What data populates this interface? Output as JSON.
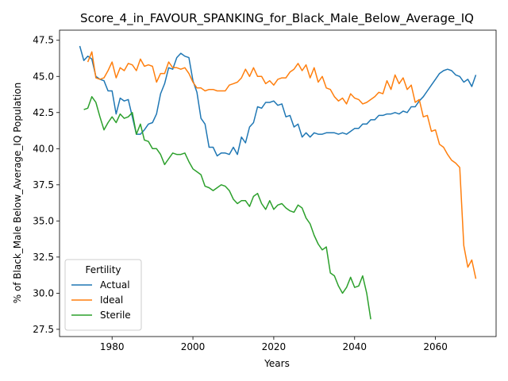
{
  "chart_data": {
    "type": "line",
    "title": "Score_4_in_FAVOUR_SPANKING_for_Black_Male_Below_Average_IQ",
    "xlabel": "Years",
    "ylabel": "% of Black_Male Below_Average_IQ Population",
    "xlim": [
      1967,
      2075
    ],
    "ylim": [
      27.0,
      48.2
    ],
    "xticks": [
      1980,
      2000,
      2020,
      2040,
      2060
    ],
    "yticks": [
      27.5,
      30.0,
      32.5,
      35.0,
      37.5,
      40.0,
      42.5,
      45.0,
      47.5
    ],
    "ytick_labels": [
      "27.5",
      "30.0",
      "32.5",
      "35.0",
      "37.5",
      "40.0",
      "42.5",
      "45.0",
      "47.5"
    ],
    "grid": false,
    "legend": {
      "title": "Fertility",
      "position": "bottom-left"
    },
    "series": [
      {
        "name": "Actual",
        "color": "#1f77b4",
        "x": [
          1972,
          1973,
          1974,
          1975,
          1976,
          1977,
          1978,
          1979,
          1980,
          1981,
          1982,
          1983,
          1984,
          1985,
          1986,
          1987,
          1988,
          1989,
          1990,
          1991,
          1992,
          1993,
          1994,
          1995,
          1996,
          1997,
          1998,
          1999,
          2000,
          2001,
          2002,
          2003,
          2004,
          2005,
          2006,
          2007,
          2008,
          2009,
          2010,
          2011,
          2012,
          2013,
          2014,
          2015,
          2016,
          2017,
          2018,
          2019,
          2020,
          2021,
          2022,
          2023,
          2024,
          2025,
          2026,
          2027,
          2028,
          2029,
          2030,
          2031,
          2032,
          2033,
          2034,
          2035,
          2036,
          2037,
          2038,
          2039,
          2040,
          2041,
          2042,
          2043,
          2044,
          2045,
          2046,
          2047,
          2048,
          2049,
          2050,
          2051,
          2052,
          2053,
          2054,
          2055,
          2056,
          2057,
          2058,
          2059,
          2060,
          2061,
          2062,
          2063,
          2064,
          2065,
          2066,
          2067,
          2068,
          2069,
          2070
        ],
        "values": [
          47.1,
          46.1,
          46.4,
          46.2,
          45.0,
          44.8,
          44.7,
          44.0,
          44.0,
          42.4,
          43.5,
          43.3,
          43.4,
          42.2,
          41.0,
          41.0,
          41.3,
          41.7,
          41.8,
          42.4,
          43.8,
          44.5,
          45.6,
          45.5,
          46.3,
          46.6,
          46.4,
          46.3,
          44.7,
          43.9,
          42.1,
          41.7,
          40.1,
          40.1,
          39.5,
          39.7,
          39.7,
          39.6,
          40.1,
          39.6,
          40.8,
          40.4,
          41.5,
          41.8,
          42.9,
          42.8,
          43.2,
          43.2,
          43.3,
          43.0,
          43.1,
          42.2,
          42.3,
          41.5,
          41.7,
          40.8,
          41.1,
          40.8,
          41.1,
          41.0,
          41.0,
          41.1,
          41.1,
          41.1,
          41.0,
          41.1,
          41.0,
          41.2,
          41.4,
          41.4,
          41.7,
          41.7,
          42.0,
          42.0,
          42.3,
          42.3,
          42.4,
          42.4,
          42.5,
          42.4,
          42.6,
          42.5,
          42.9,
          42.9,
          43.3,
          43.6,
          44.0,
          44.4,
          44.8,
          45.2,
          45.4,
          45.5,
          45.4,
          45.1,
          45.0,
          44.6,
          44.8,
          44.3,
          45.1
        ]
      },
      {
        "name": "Ideal",
        "color": "#ff7f0e",
        "x": [
          1974,
          1975,
          1976,
          1977,
          1978,
          1979,
          1980,
          1981,
          1982,
          1983,
          1984,
          1985,
          1986,
          1987,
          1988,
          1989,
          1990,
          1991,
          1992,
          1993,
          1994,
          1995,
          1996,
          1997,
          1998,
          1999,
          2000,
          2001,
          2002,
          2003,
          2004,
          2005,
          2006,
          2007,
          2008,
          2009,
          2010,
          2011,
          2012,
          2013,
          2014,
          2015,
          2016,
          2017,
          2018,
          2019,
          2020,
          2021,
          2022,
          2023,
          2024,
          2025,
          2026,
          2027,
          2028,
          2029,
          2030,
          2031,
          2032,
          2033,
          2034,
          2035,
          2036,
          2037,
          2038,
          2039,
          2040,
          2041,
          2042,
          2043,
          2044,
          2045,
          2046,
          2047,
          2048,
          2049,
          2050,
          2051,
          2052,
          2053,
          2054,
          2055,
          2056,
          2057,
          2058,
          2059,
          2060,
          2061,
          2062,
          2063,
          2064,
          2065,
          2066,
          2067,
          2068,
          2069,
          2070
        ],
        "values": [
          46.0,
          46.7,
          44.9,
          44.8,
          44.9,
          45.4,
          46.0,
          44.9,
          45.6,
          45.4,
          45.9,
          45.8,
          45.4,
          46.2,
          45.7,
          45.8,
          45.7,
          44.6,
          45.2,
          45.2,
          46.0,
          45.6,
          45.6,
          45.5,
          45.6,
          45.2,
          44.6,
          44.2,
          44.2,
          44.0,
          44.1,
          44.1,
          44.0,
          44.0,
          44.0,
          44.4,
          44.5,
          44.6,
          44.9,
          45.5,
          45.0,
          45.6,
          45.0,
          45.0,
          44.5,
          44.7,
          44.4,
          44.8,
          44.9,
          44.9,
          45.3,
          45.5,
          45.9,
          45.4,
          45.8,
          44.9,
          45.6,
          44.6,
          45.0,
          44.2,
          44.1,
          43.6,
          43.3,
          43.5,
          43.1,
          43.8,
          43.5,
          43.4,
          43.1,
          43.2,
          43.4,
          43.6,
          43.9,
          43.8,
          44.7,
          44.1,
          45.1,
          44.5,
          44.9,
          44.1,
          44.4,
          43.2,
          43.4,
          42.2,
          42.3,
          41.2,
          41.3,
          40.3,
          40.1,
          39.6,
          39.2,
          39.0,
          38.7,
          33.3,
          31.8,
          32.3,
          31.0
        ]
      },
      {
        "name": "Sterile",
        "color": "#2ca02c",
        "x": [
          1973,
          1974,
          1975,
          1976,
          1977,
          1978,
          1979,
          1980,
          1981,
          1982,
          1983,
          1984,
          1985,
          1986,
          1987,
          1988,
          1989,
          1990,
          1991,
          1992,
          1993,
          1994,
          1995,
          1996,
          1997,
          1998,
          1999,
          2000,
          2001,
          2002,
          2003,
          2004,
          2005,
          2006,
          2007,
          2008,
          2009,
          2010,
          2011,
          2012,
          2013,
          2014,
          2015,
          2016,
          2017,
          2018,
          2019,
          2020,
          2021,
          2022,
          2023,
          2024,
          2025,
          2026,
          2027,
          2028,
          2029,
          2030,
          2031,
          2032,
          2033,
          2034,
          2035,
          2036,
          2037,
          2038,
          2039,
          2040,
          2041,
          2042,
          2043,
          2044
        ],
        "values": [
          42.7,
          42.8,
          43.6,
          43.2,
          42.2,
          41.3,
          41.8,
          42.2,
          41.8,
          42.4,
          42.1,
          42.2,
          42.5,
          41.0,
          41.7,
          40.6,
          40.5,
          40.0,
          40.0,
          39.6,
          38.9,
          39.3,
          39.7,
          39.6,
          39.6,
          39.7,
          39.1,
          38.6,
          38.4,
          38.2,
          37.4,
          37.3,
          37.1,
          37.3,
          37.5,
          37.4,
          37.1,
          36.5,
          36.2,
          36.4,
          36.4,
          36.0,
          36.7,
          36.9,
          36.2,
          35.8,
          36.4,
          35.8,
          36.1,
          36.2,
          35.9,
          35.7,
          35.6,
          36.1,
          35.9,
          35.2,
          34.8,
          34.0,
          33.4,
          33.0,
          33.2,
          31.4,
          31.2,
          30.5,
          30.0,
          30.4,
          31.1,
          30.4,
          30.5,
          31.2,
          30.0,
          28.2
        ]
      }
    ]
  }
}
